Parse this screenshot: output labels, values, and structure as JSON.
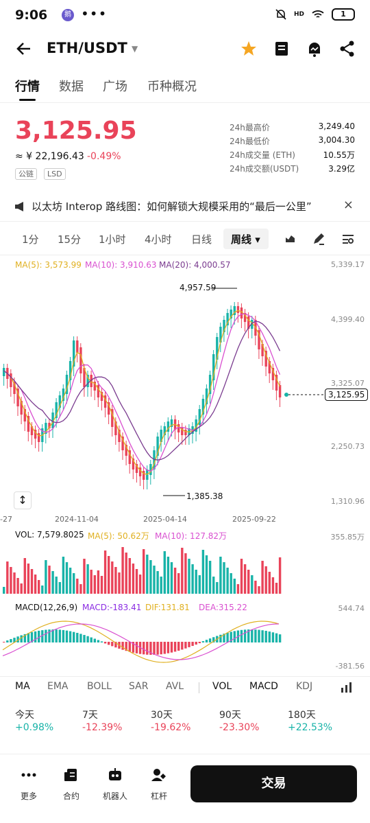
{
  "status": {
    "time": "9:06",
    "badge": "鹅",
    "dots": "•••",
    "signal": "HD",
    "battery": "1"
  },
  "header": {
    "title": "ETH/USDT"
  },
  "tabs": [
    "行情",
    "数据",
    "广场",
    "币种概况"
  ],
  "price": {
    "last": "3,125.95",
    "cny": "≈ ¥ 22,196.43",
    "change": "-0.49%",
    "tags": [
      "公链",
      "LSD"
    ]
  },
  "stats": [
    {
      "label": "24h最高价",
      "value": "3,249.40"
    },
    {
      "label": "24h最低价",
      "value": "3,004.30"
    },
    {
      "label": "24h成交量 (ETH)",
      "value": "10.55万"
    },
    {
      "label": "24h成交额(USDT)",
      "value": "3.29亿"
    }
  ],
  "notice": {
    "text": "以太坊 Interop 路线图：如何解锁大规模采用的“最后一公里”",
    "close": "×"
  },
  "periods": [
    "1分",
    "15分",
    "1小时",
    "4小时",
    "日线",
    "周线 ▾"
  ],
  "ma": {
    "ma5": "MA(5): 3,573.99",
    "ma10": "MA(10): 3,910.63",
    "ma20": "MA(20): 4,000.57"
  },
  "colors": {
    "up": "#18b3a8",
    "down": "#e94359",
    "ma5": "#e0b020",
    "ma10": "#d94fd0",
    "ma20": "#7a3b8f"
  },
  "chart_data": {
    "type": "candlestick",
    "y_ticks": [
      "5,339.17",
      "4,399.40",
      "3,325.07",
      "2,250.73",
      "1,310.96"
    ],
    "x_ticks": [
      "-27",
      "2024-11-04",
      "2025-04-14",
      "2025-09-22"
    ],
    "annotations": {
      "high": "4,957.59",
      "low": "1,385.38",
      "last": "3,125.95"
    },
    "volume": {
      "label": "VOL: 7,579.8025",
      "ma5": "MA(5): 50.62万",
      "ma10": "MA(10): 127.82万",
      "max_tick": "355.85万"
    },
    "macd": {
      "label": "MACD(12,26,9)",
      "macd": "MACD:-183.41",
      "dif": "DIF:131.81",
      "dea": "DEA:315.22",
      "y_ticks": [
        "544.74",
        "-381.56"
      ]
    }
  },
  "indicators": [
    "MA",
    "EMA",
    "BOLL",
    "SAR",
    "AVL",
    "VOL",
    "MACD",
    "KDJ"
  ],
  "performance": [
    {
      "label": "今天",
      "value": "+0.98%"
    },
    {
      "label": "7天",
      "value": "-12.39%"
    },
    {
      "label": "30天",
      "value": "-19.62%"
    },
    {
      "label": "90天",
      "value": "-23.30%"
    },
    {
      "label": "180天",
      "value": "+22.53%"
    }
  ],
  "bottom": {
    "items": [
      "更多",
      "合约",
      "机器人",
      "杠杆"
    ],
    "trade": "交易"
  }
}
